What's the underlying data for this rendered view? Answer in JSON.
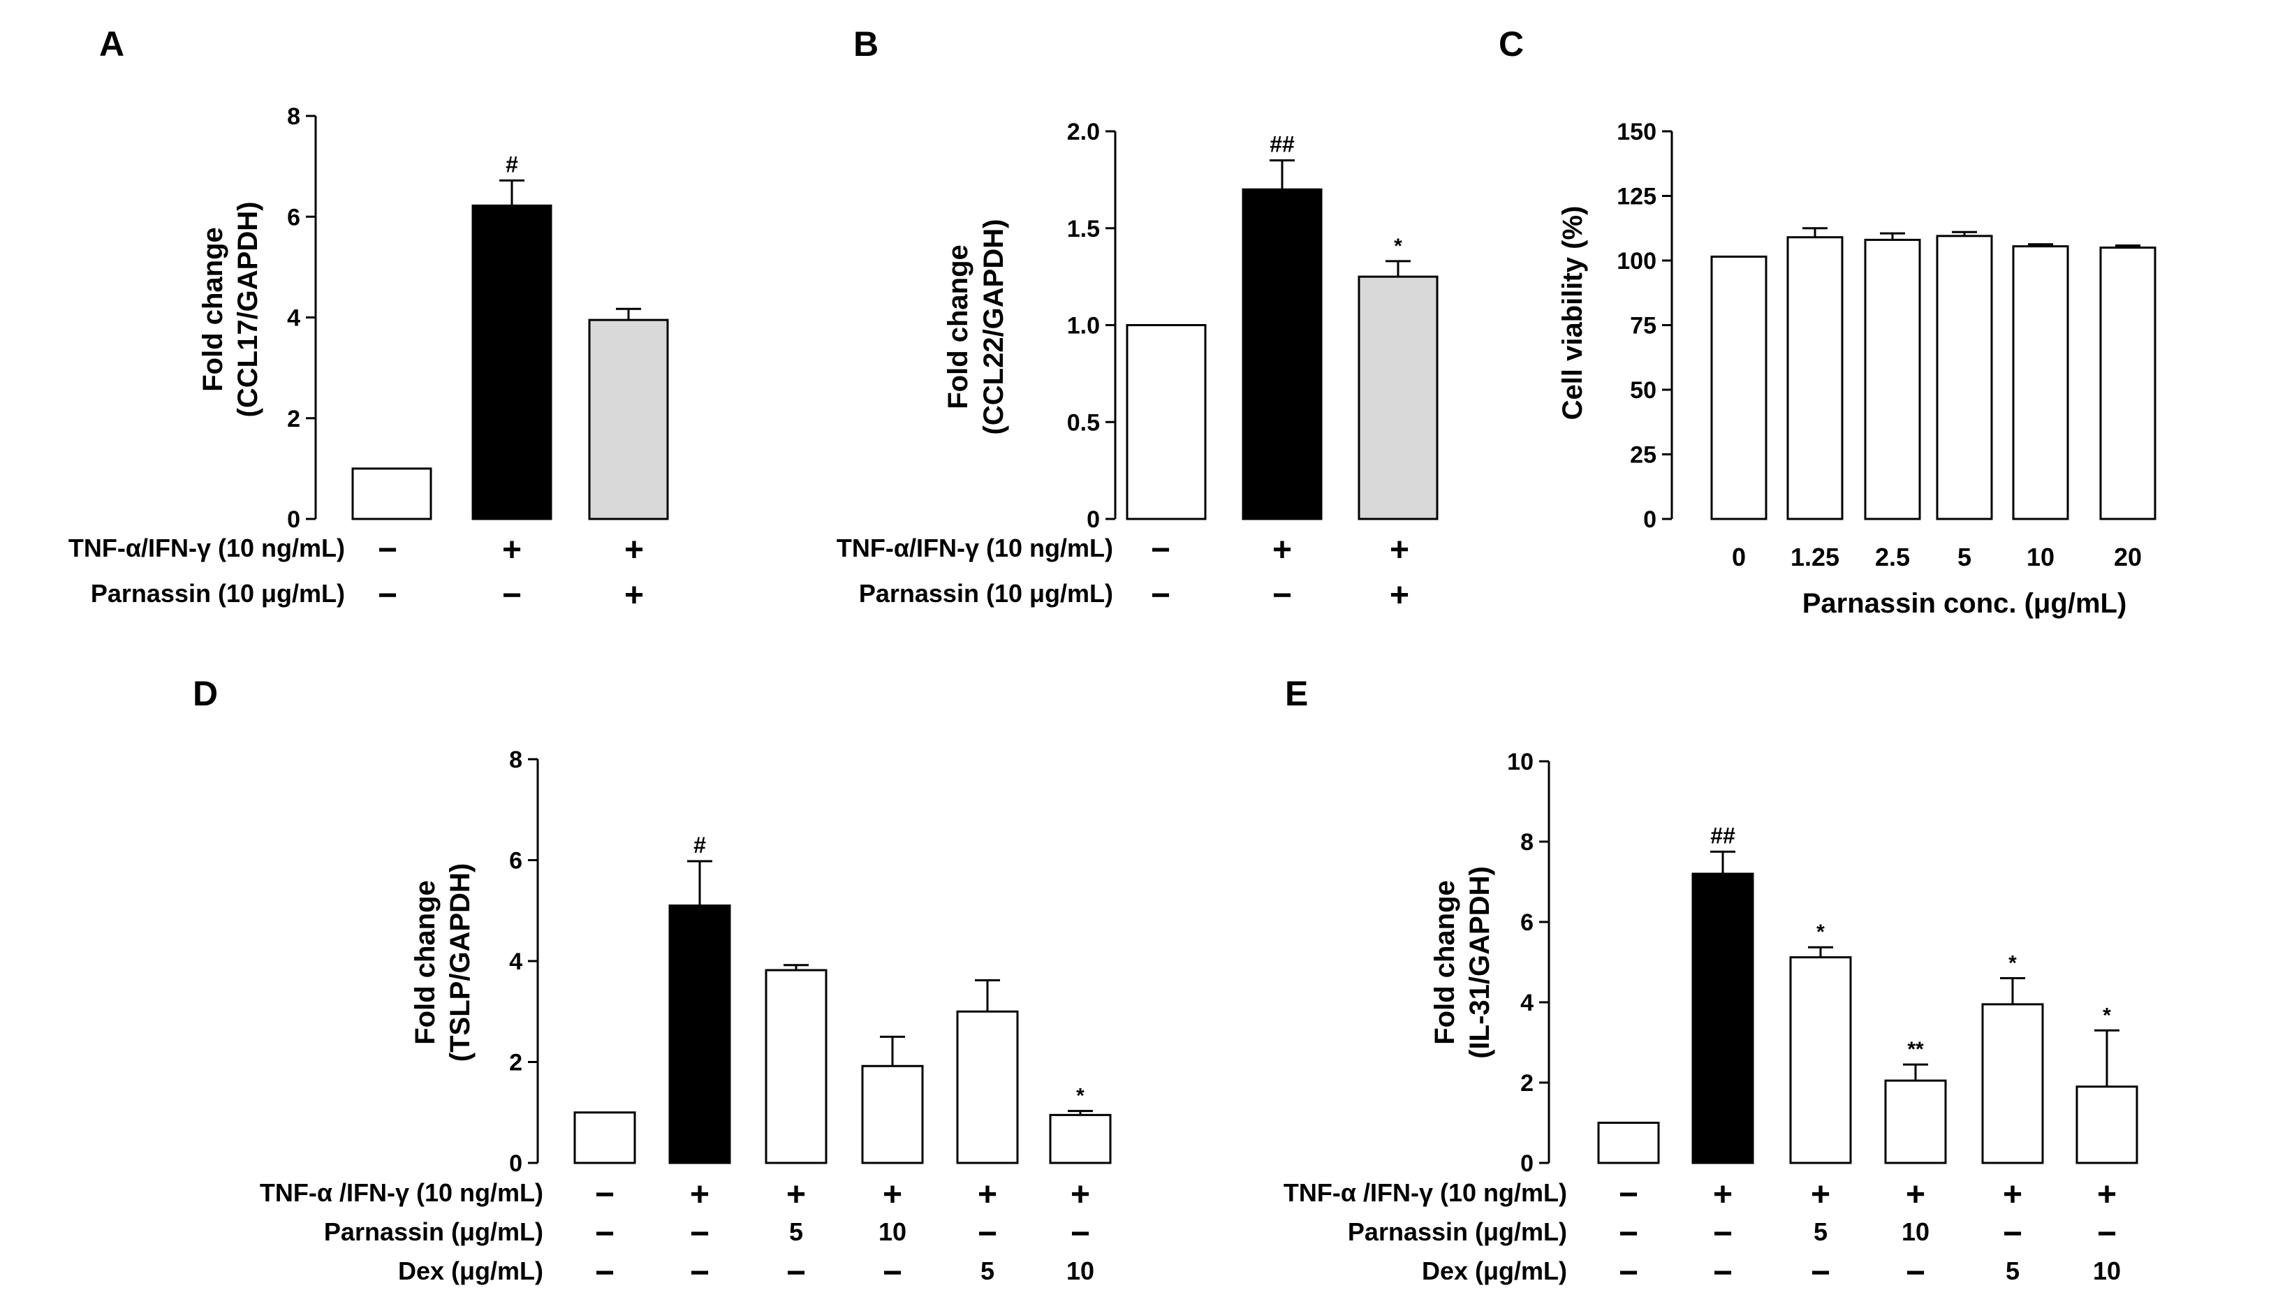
{
  "figure": {
    "colors": {
      "black": "#000000",
      "white": "#ffffff",
      "gray": "#d9d9d9"
    }
  },
  "chart_data": [
    {
      "panel": "A",
      "type": "bar",
      "ylabel": [
        "Fold change",
        "(CCL17/GAPDH)"
      ],
      "ylim": [
        0,
        8
      ],
      "yticks": [
        "0",
        "2",
        "4",
        "6",
        "8"
      ],
      "ytick_values": [
        0,
        2,
        4,
        6,
        8
      ],
      "values": [
        1.0,
        6.22,
        3.95
      ],
      "errors": [
        0,
        0.5,
        0.22
      ],
      "fills": [
        "white",
        "black",
        "gray"
      ],
      "annotations": [
        "",
        "#",
        ""
      ],
      "rows": [
        {
          "label": "TNF-α/IFN-γ (10 ng/mL)",
          "marks": [
            "−",
            "+",
            "+"
          ]
        },
        {
          "label": "Parnassin (10 μg/mL)",
          "marks": [
            "−",
            "−",
            "+"
          ]
        }
      ]
    },
    {
      "panel": "B",
      "type": "bar",
      "ylabel": [
        "Fold change",
        "(CCL22/GAPDH)"
      ],
      "ylim": [
        0,
        2.0
      ],
      "yticks": [
        "0",
        "0.5",
        "1.0",
        "1.5",
        "2.0"
      ],
      "ytick_values": [
        0,
        0.5,
        1.0,
        1.5,
        2.0
      ],
      "values": [
        1.0,
        1.7,
        1.25
      ],
      "errors": [
        0,
        0.15,
        0.08
      ],
      "fills": [
        "white",
        "black",
        "gray"
      ],
      "annotations": [
        "",
        "##",
        "*"
      ],
      "rows": [
        {
          "label": "TNF-α/IFN-γ (10 ng/mL)",
          "marks": [
            "−",
            "+",
            "+"
          ]
        },
        {
          "label": "Parnassin (10 μg/mL)",
          "marks": [
            "−",
            "−",
            "+"
          ]
        }
      ]
    },
    {
      "panel": "C",
      "type": "bar",
      "ylabel": [
        "Cell viability (%)"
      ],
      "xlabel": "Parnassin conc. (μg/mL)",
      "ylim": [
        0,
        150
      ],
      "yticks": [
        "0",
        "25",
        "50",
        "75",
        "100",
        "125",
        "150"
      ],
      "ytick_values": [
        0,
        25,
        50,
        75,
        100,
        125,
        150
      ],
      "categories": [
        "0",
        "1.25",
        "2.5",
        "5",
        "10",
        "20"
      ],
      "values": [
        101.5,
        109,
        108,
        109.5,
        105.5,
        105
      ],
      "errors": [
        0,
        3.5,
        2.5,
        1.5,
        0.8,
        0.8
      ],
      "fills": [
        "white",
        "white",
        "white",
        "white",
        "white",
        "white"
      ],
      "annotations": [
        "",
        "",
        "",
        "",
        "",
        ""
      ],
      "rows": []
    },
    {
      "panel": "D",
      "type": "bar",
      "ylabel": [
        "Fold change",
        "(TSLP/GAPDH)"
      ],
      "ylim": [
        0,
        8
      ],
      "yticks": [
        "0",
        "2",
        "4",
        "6",
        "8"
      ],
      "ytick_values": [
        0,
        2,
        4,
        6,
        8
      ],
      "values": [
        1.0,
        5.1,
        3.82,
        1.92,
        3.0,
        0.95
      ],
      "errors": [
        0,
        0.88,
        0.1,
        0.58,
        0.62,
        0.08
      ],
      "fills": [
        "white",
        "black",
        "white",
        "white",
        "white",
        "white"
      ],
      "annotations": [
        "",
        "#",
        "",
        "",
        "",
        "*"
      ],
      "rows": [
        {
          "label": "TNF-α /IFN-γ (10 ng/mL)",
          "marks": [
            "−",
            "+",
            "+",
            "+",
            "+",
            "+"
          ]
        },
        {
          "label": "Parnassin (μg/mL)",
          "marks": [
            "−",
            "−",
            "5",
            "10",
            "−",
            "−"
          ]
        },
        {
          "label": "Dex (μg/mL)",
          "marks": [
            "−",
            "−",
            "−",
            "−",
            "5",
            "10"
          ]
        }
      ]
    },
    {
      "panel": "E",
      "type": "bar",
      "ylabel": [
        "Fold change",
        "(IL-31/GAPDH)"
      ],
      "ylim": [
        0,
        10
      ],
      "yticks": [
        "0",
        "2",
        "4",
        "6",
        "8",
        "10"
      ],
      "ytick_values": [
        0,
        2,
        4,
        6,
        8,
        10
      ],
      "values": [
        1.0,
        7.2,
        5.12,
        2.05,
        3.95,
        1.9
      ],
      "errors": [
        0,
        0.55,
        0.25,
        0.4,
        0.65,
        1.4
      ],
      "fills": [
        "white",
        "black",
        "white",
        "white",
        "white",
        "white"
      ],
      "annotations": [
        "",
        "##",
        "*",
        "**",
        "*",
        "*"
      ],
      "rows": [
        {
          "label": "TNF-α /IFN-γ (10 ng/mL)",
          "marks": [
            "−",
            "+",
            "+",
            "+",
            "+",
            "+"
          ]
        },
        {
          "label": "Parnassin (μg/mL)",
          "marks": [
            "−",
            "−",
            "5",
            "10",
            "−",
            "−"
          ]
        },
        {
          "label": "Dex (μg/mL)",
          "marks": [
            "−",
            "−",
            "−",
            "−",
            "5",
            "10"
          ]
        }
      ]
    }
  ]
}
